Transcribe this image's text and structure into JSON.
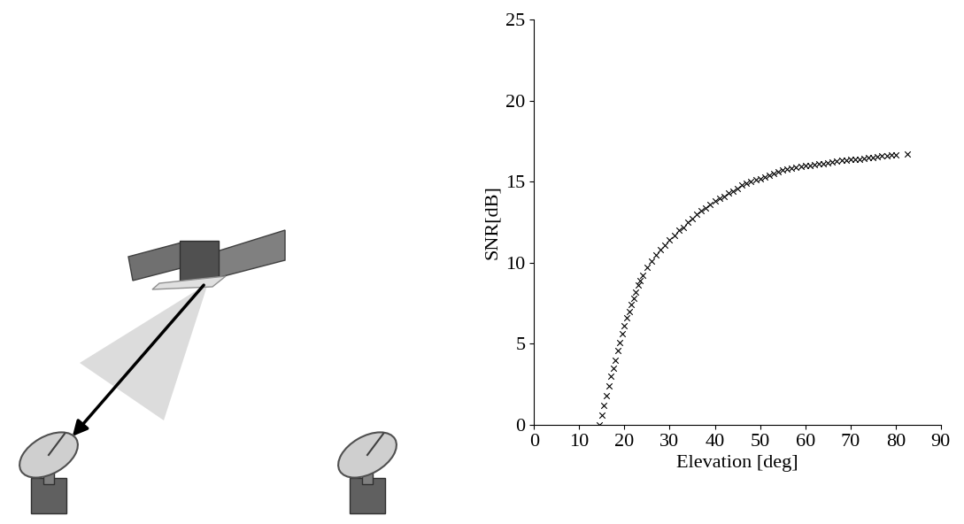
{
  "chart_data": {
    "type": "scatter",
    "xlabel": "Elevation [deg]",
    "ylabel": "SNR[dB]",
    "x": [
      14.5,
      15,
      15.5,
      16,
      16.5,
      17,
      17.5,
      18,
      18.5,
      19,
      19.5,
      20,
      20.5,
      21,
      21.5,
      22,
      22.5,
      23,
      23.5,
      24,
      25,
      26,
      27,
      28,
      29,
      30,
      31,
      32,
      33,
      34,
      35,
      36,
      37,
      38,
      39,
      40,
      41,
      42,
      43,
      44,
      45,
      46,
      47,
      48,
      49,
      50,
      51,
      52,
      53,
      54,
      55,
      56,
      57,
      58,
      59,
      60,
      61,
      62,
      63,
      64,
      65,
      66,
      67,
      68,
      69,
      70,
      71,
      72,
      73,
      74,
      75,
      76,
      77,
      78,
      79,
      80,
      82.5
    ],
    "values": [
      0,
      0.6,
      1.2,
      1.8,
      2.4,
      3.0,
      3.5,
      4.0,
      4.6,
      5.1,
      5.6,
      6.1,
      6.6,
      7.0,
      7.4,
      7.8,
      8.2,
      8.6,
      8.9,
      9.2,
      9.7,
      10.1,
      10.5,
      10.8,
      11.1,
      11.4,
      11.7,
      12.0,
      12.2,
      12.5,
      12.7,
      13.0,
      13.2,
      13.4,
      13.6,
      13.8,
      14.0,
      14.1,
      14.3,
      14.4,
      14.6,
      14.8,
      14.9,
      15.0,
      15.1,
      15.2,
      15.3,
      15.4,
      15.5,
      15.6,
      15.7,
      15.8,
      15.85,
      15.9,
      15.95,
      16.0,
      16.0,
      16.05,
      16.1,
      16.1,
      16.15,
      16.2,
      16.25,
      16.3,
      16.3,
      16.35,
      16.4,
      16.4,
      16.45,
      16.5,
      16.5,
      16.55,
      16.6,
      16.6,
      16.65,
      16.65,
      16.7
    ],
    "color": "#000000",
    "marker": "x",
    "xlim": [
      0,
      90
    ],
    "xticks": [
      0,
      10,
      20,
      30,
      40,
      50,
      60,
      70,
      80,
      90
    ],
    "ylim": [
      0,
      25
    ],
    "yticks": [
      0,
      5,
      10,
      15,
      20,
      25
    ],
    "grid": false
  }
}
